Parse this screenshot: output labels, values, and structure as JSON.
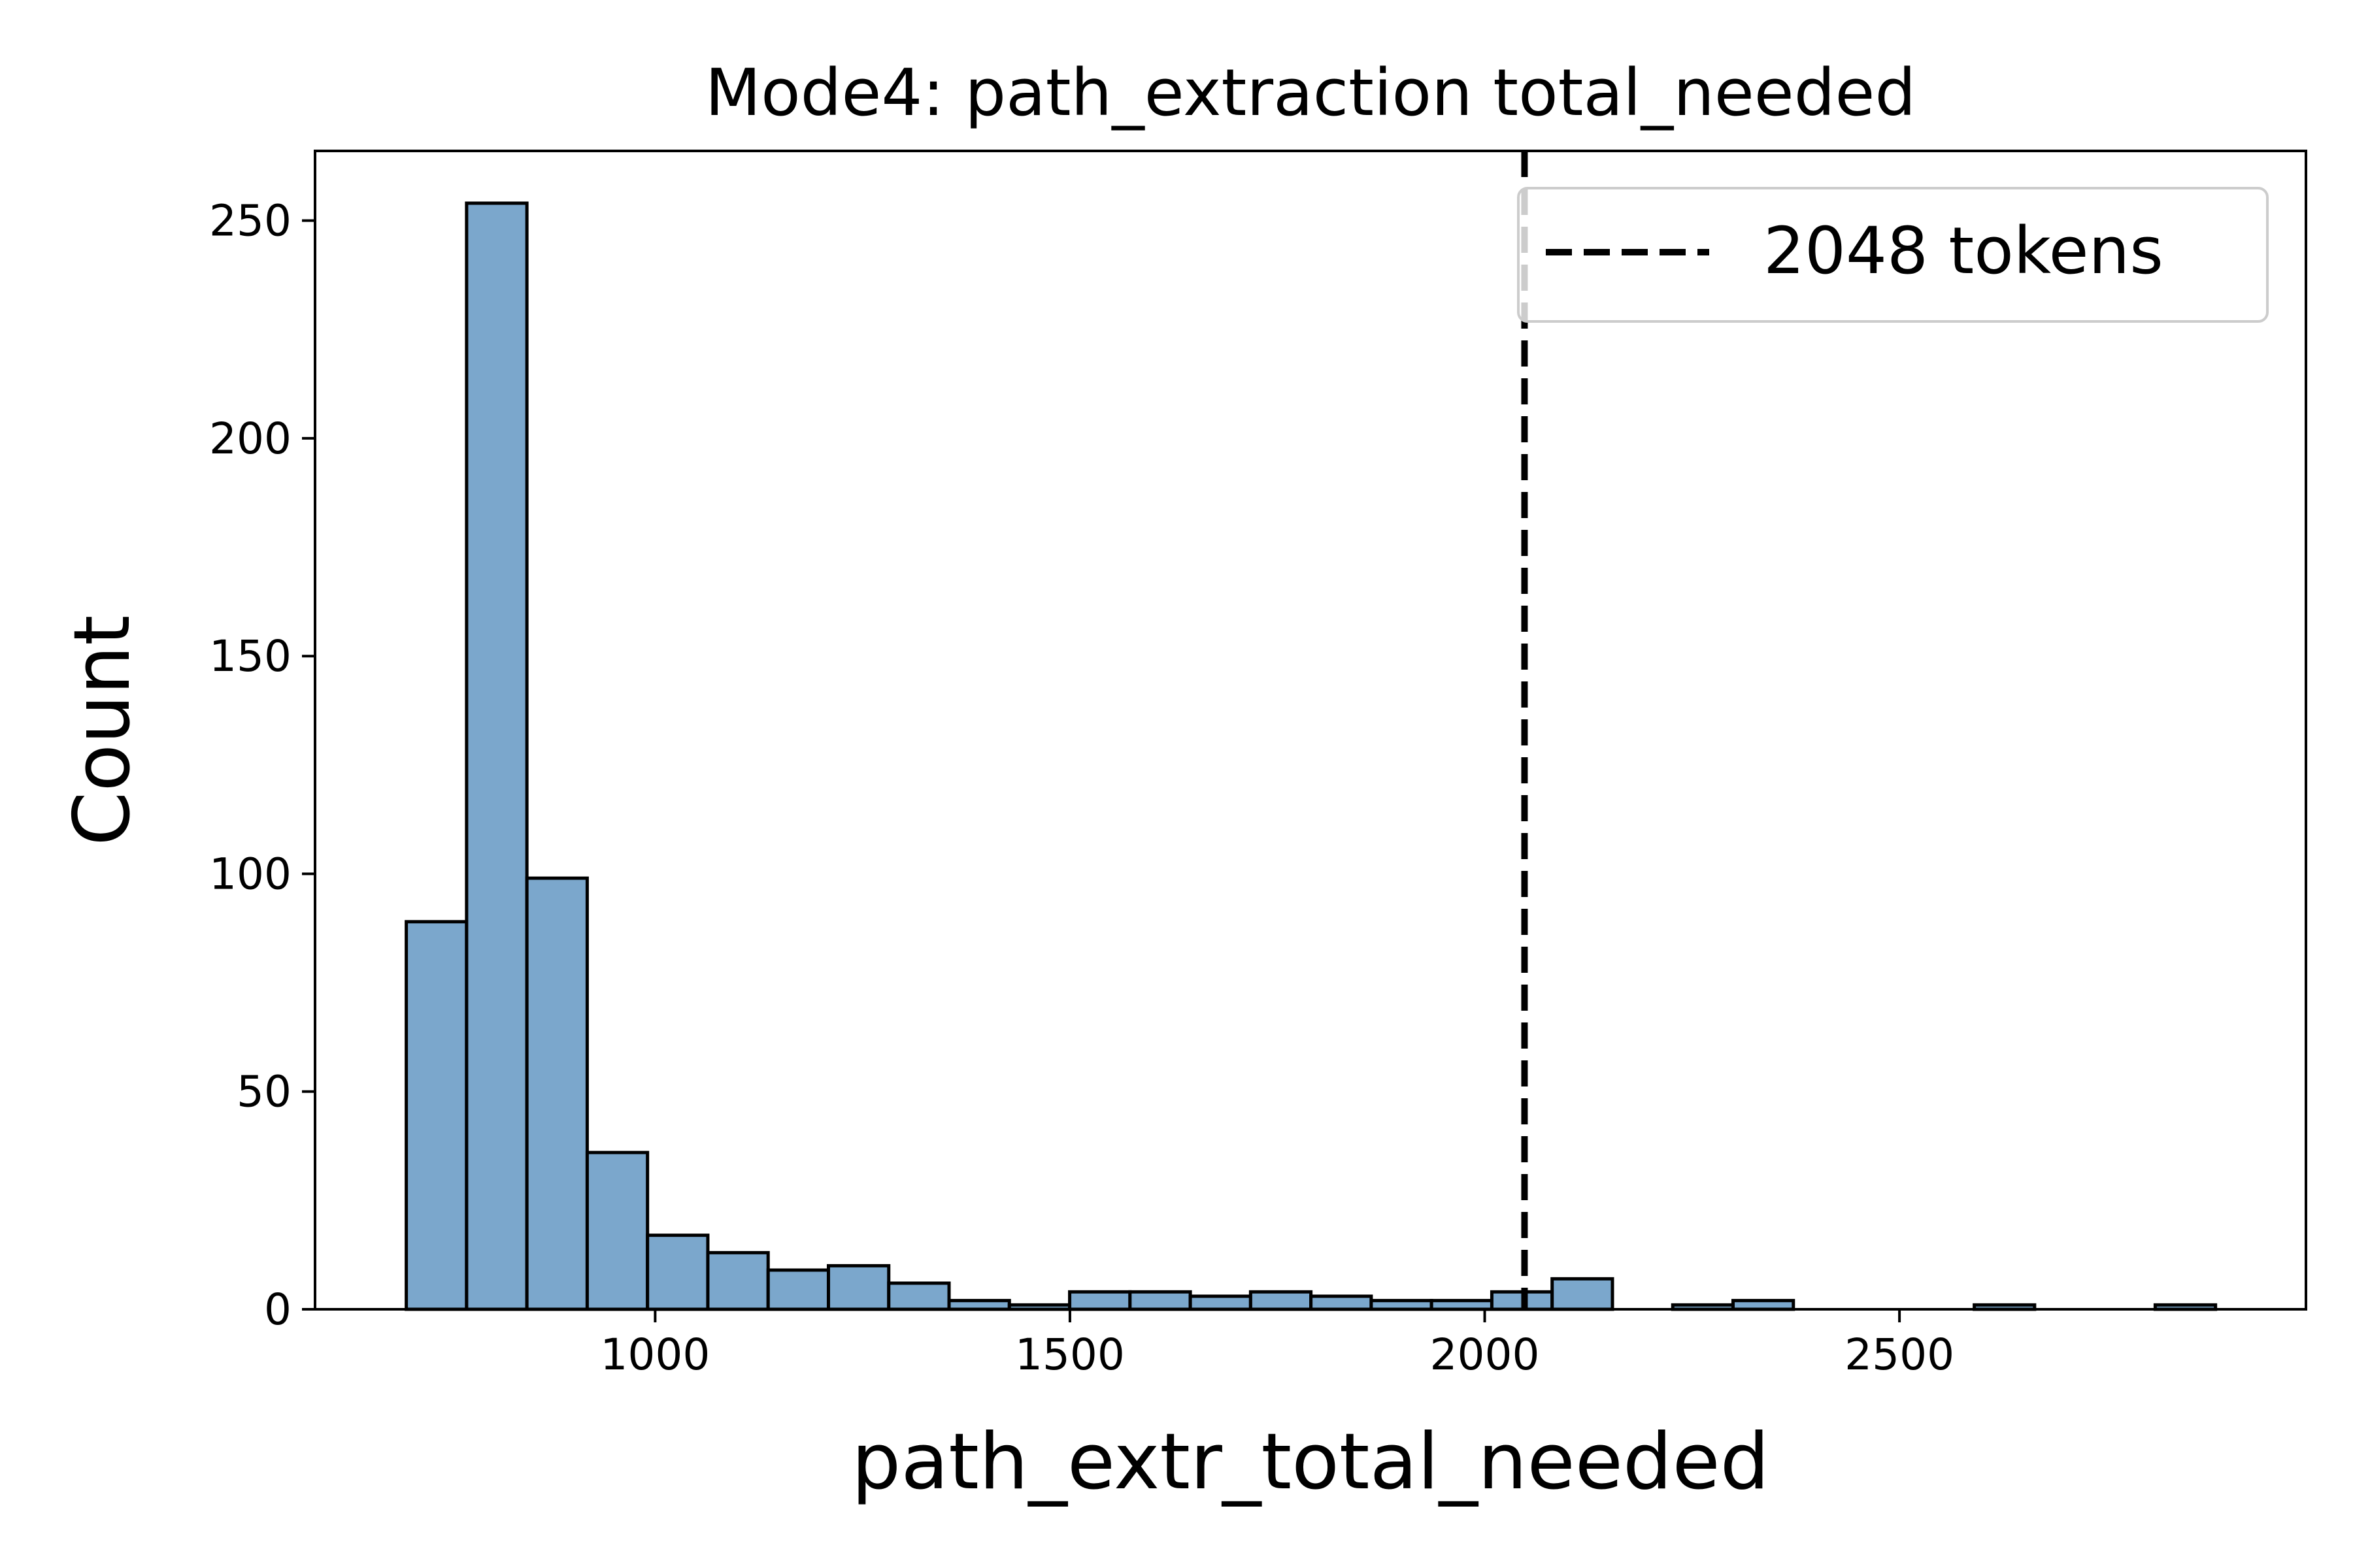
{
  "chart_data": {
    "type": "bar",
    "title": "Mode4: path_extraction total_needed",
    "xlabel": "path_extr_total_needed",
    "ylabel": "Count",
    "xlim": [
      590,
      2990
    ],
    "ylim": [
      0,
      266
    ],
    "xticks": [
      1000,
      1500,
      2000,
      2500
    ],
    "yticks": [
      0,
      50,
      100,
      150,
      200,
      250
    ],
    "bin_width": 72.7,
    "bins": [
      {
        "x0": 700,
        "count": 89
      },
      {
        "x0": 772.7,
        "count": 254
      },
      {
        "x0": 845.4,
        "count": 99
      },
      {
        "x0": 918.1,
        "count": 36
      },
      {
        "x0": 990.8,
        "count": 17
      },
      {
        "x0": 1063.5,
        "count": 13
      },
      {
        "x0": 1136.2,
        "count": 9
      },
      {
        "x0": 1208.9,
        "count": 10
      },
      {
        "x0": 1281.6,
        "count": 6
      },
      {
        "x0": 1354.3,
        "count": 2
      },
      {
        "x0": 1427.0,
        "count": 1
      },
      {
        "x0": 1499.7,
        "count": 4
      },
      {
        "x0": 1572.4,
        "count": 4
      },
      {
        "x0": 1645.1,
        "count": 3
      },
      {
        "x0": 1717.8,
        "count": 4
      },
      {
        "x0": 1790.5,
        "count": 3
      },
      {
        "x0": 1863.2,
        "count": 2
      },
      {
        "x0": 1935.9,
        "count": 2
      },
      {
        "x0": 2008.6,
        "count": 4
      },
      {
        "x0": 2081.3,
        "count": 7
      },
      {
        "x0": 2154.0,
        "count": 0
      },
      {
        "x0": 2226.7,
        "count": 1
      },
      {
        "x0": 2299.4,
        "count": 2
      },
      {
        "x0": 2372.1,
        "count": 0
      },
      {
        "x0": 2444.8,
        "count": 0
      },
      {
        "x0": 2517.5,
        "count": 0
      },
      {
        "x0": 2590.2,
        "count": 1
      },
      {
        "x0": 2662.9,
        "count": 0
      },
      {
        "x0": 2735.6,
        "count": 0
      },
      {
        "x0": 2808.3,
        "count": 1
      }
    ],
    "reference_line": {
      "x": 2048,
      "label": "2048 tokens",
      "style": "dashed",
      "color": "#000000"
    },
    "legend_position": "top-right",
    "grid": false,
    "bar_color": "#7ba7cc",
    "edge_color": "#000000"
  }
}
